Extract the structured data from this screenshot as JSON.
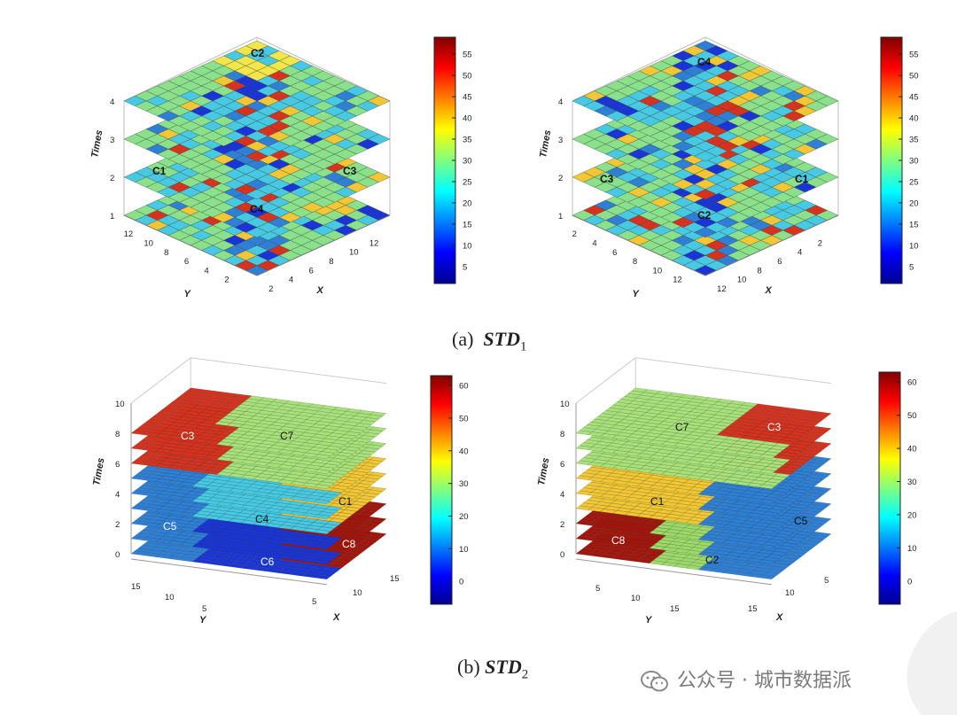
{
  "colors": {
    "colormap": [
      "#00008f",
      "#0000ff",
      "#0080ff",
      "#00ffff",
      "#80ff80",
      "#ffff00",
      "#ff8000",
      "#ff0000",
      "#800000"
    ],
    "ramp_base": [
      "#2f8bd7",
      "#36c7e8",
      "#8be08c",
      "#f3e64a",
      "#f6a53a",
      "#e23a1e"
    ],
    "cluster_colors": {
      "C1": "#f2c634",
      "C2": "#9cd96a",
      "C3": "#d6321f",
      "C4": "#48c9e3",
      "C5": "#2f7fd6",
      "C6": "#1a34d6",
      "C7": "#a8e07a",
      "C8": "#a3140c"
    },
    "gridline": "#3a4a3a"
  },
  "captions": {
    "a": {
      "prefix": "(a)",
      "symbol": "STD",
      "sub": "1"
    },
    "b": {
      "prefix": "(b)",
      "symbol": "STD",
      "sub": "2"
    }
  },
  "watermark": {
    "text": "公众号 · 城市数据派",
    "icon": "wechat-icon"
  },
  "chart_data": [
    {
      "type": "heatmap",
      "panel": "a-left",
      "zlabel": "Times",
      "xlabel": "X",
      "ylabel": "Y",
      "z_ticks": [
        "1",
        "2",
        "3",
        "4"
      ],
      "x_ticks": [
        "2",
        "4",
        "6",
        "8",
        "10",
        "12"
      ],
      "y_ticks": [
        "2",
        "4",
        "6",
        "8",
        "10",
        "12"
      ],
      "grid": [
        12,
        12
      ],
      "layers": 4,
      "clusters": [
        "C1",
        "C2",
        "C3",
        "C4"
      ],
      "colorbar": {
        "ticks": [
          "5",
          "10",
          "15",
          "20",
          "25",
          "30",
          "35",
          "40",
          "45",
          "50",
          "55"
        ],
        "range": [
          1,
          59
        ]
      }
    },
    {
      "type": "heatmap",
      "panel": "a-right",
      "zlabel": "Times",
      "xlabel": "X",
      "ylabel": "Y",
      "z_ticks": [
        "1",
        "2",
        "3",
        "4"
      ],
      "x_ticks": [
        "2",
        "4",
        "6",
        "8",
        "10",
        "12"
      ],
      "y_ticks": [
        "2",
        "4",
        "6",
        "8",
        "10",
        "12"
      ],
      "grid": [
        12,
        12
      ],
      "layers": 4,
      "clusters": [
        "C1",
        "C2",
        "C3",
        "C4"
      ],
      "colorbar": {
        "ticks": [
          "5",
          "10",
          "15",
          "20",
          "25",
          "30",
          "35",
          "40",
          "45",
          "50",
          "55"
        ],
        "range": [
          1,
          59
        ]
      }
    },
    {
      "type": "heatmap",
      "panel": "b-left",
      "zlabel": "Times",
      "xlabel": "X",
      "ylabel": "Y",
      "z_ticks": [
        "0",
        "2",
        "4",
        "6",
        "8",
        "10"
      ],
      "x_ticks": [
        "5",
        "10",
        "15"
      ],
      "y_ticks": [
        "5",
        "10",
        "15"
      ],
      "grid": [
        16,
        16
      ],
      "layers": 10,
      "clusters": [
        "C1",
        "C3",
        "C4",
        "C5",
        "C6",
        "C7",
        "C8"
      ],
      "colorbar": {
        "ticks": [
          "0",
          "10",
          "20",
          "30",
          "40",
          "50",
          "60"
        ],
        "range": [
          -7,
          63
        ]
      }
    },
    {
      "type": "heatmap",
      "panel": "b-right",
      "zlabel": "Times",
      "xlabel": "X",
      "ylabel": "Y",
      "z_ticks": [
        "0",
        "2",
        "4",
        "6",
        "8",
        "10"
      ],
      "x_ticks": [
        "5",
        "10",
        "15"
      ],
      "y_ticks": [
        "5",
        "10",
        "15"
      ],
      "grid": [
        16,
        16
      ],
      "layers": 10,
      "clusters": [
        "C1",
        "C2",
        "C3",
        "C5",
        "C7",
        "C8"
      ],
      "colorbar": {
        "ticks": [
          "0",
          "10",
          "20",
          "30",
          "40",
          "50",
          "60"
        ],
        "range": [
          -7,
          63
        ]
      }
    }
  ]
}
